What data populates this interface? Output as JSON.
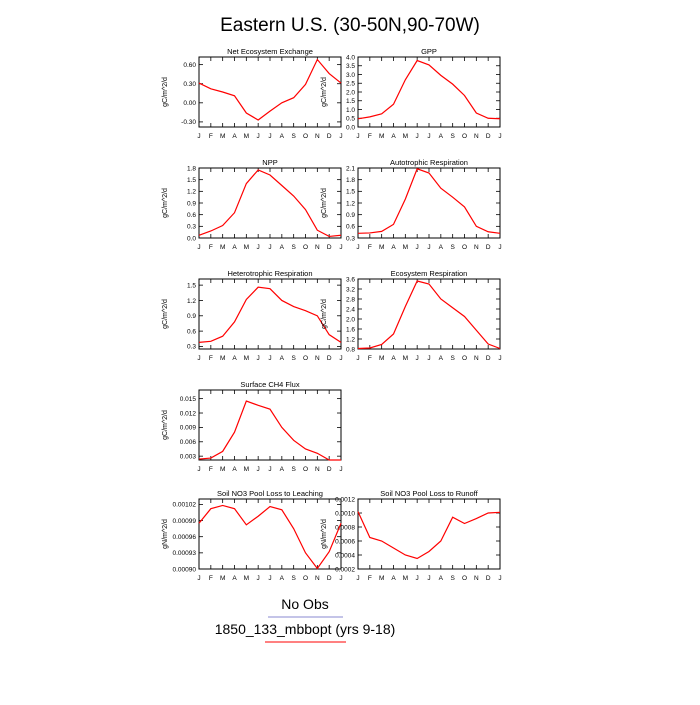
{
  "page_title": "Eastern U.S. (30-50N,90-70W)",
  "legend": {
    "entries": [
      {
        "label": "No Obs",
        "color": "#8a8ad0"
      },
      {
        "label": "1850_133_mbbopt (yrs 9-18)",
        "color": "#ff0000"
      }
    ]
  },
  "colors": {
    "series": "#ff0000",
    "axis": "#000000"
  },
  "chart_data": [
    {
      "type": "line",
      "title": "Net Ecosystem Exchange",
      "ylabel": "gC/m^2/d",
      "x": [
        "J",
        "F",
        "M",
        "A",
        "M",
        "J",
        "J",
        "A",
        "S",
        "O",
        "N",
        "D",
        "J"
      ],
      "ylim": [
        -0.38,
        0.72
      ],
      "yticks": [
        -0.3,
        0.0,
        0.3,
        0.6
      ],
      "ytick_labels": [
        "-0.30",
        "0.00",
        "0.30",
        "0.60"
      ],
      "series": [
        {
          "values": [
            0.31,
            0.22,
            0.17,
            0.11,
            -0.16,
            -0.27,
            -0.13,
            0.0,
            0.08,
            0.29,
            0.68,
            0.46,
            0.31
          ]
        }
      ]
    },
    {
      "type": "line",
      "title": "GPP",
      "ylabel": "gC/m^2/d",
      "x": [
        "J",
        "F",
        "M",
        "A",
        "M",
        "J",
        "J",
        "A",
        "S",
        "O",
        "N",
        "D",
        "J"
      ],
      "ylim": [
        0.0,
        4.0
      ],
      "yticks": [
        0.0,
        0.5,
        1.0,
        1.5,
        2.0,
        2.5,
        3.0,
        3.5,
        4.0
      ],
      "ytick_labels": [
        "0.0",
        "0.5",
        "1.0",
        "1.5",
        "2.0",
        "2.5",
        "3.0",
        "3.5",
        "4.0"
      ],
      "series": [
        {
          "values": [
            0.47,
            0.58,
            0.75,
            1.3,
            2.7,
            3.8,
            3.55,
            2.95,
            2.45,
            1.8,
            0.8,
            0.5,
            0.47
          ]
        }
      ]
    },
    {
      "type": "line",
      "title": "NPP",
      "ylabel": "gC/m^2/d",
      "x": [
        "J",
        "F",
        "M",
        "A",
        "M",
        "J",
        "J",
        "A",
        "S",
        "O",
        "N",
        "D",
        "J"
      ],
      "ylim": [
        0.0,
        1.8
      ],
      "yticks": [
        0.0,
        0.3,
        0.6,
        0.9,
        1.2,
        1.5,
        1.8
      ],
      "ytick_labels": [
        "0.0",
        "0.3",
        "0.6",
        "0.9",
        "1.2",
        "1.5",
        "1.8"
      ],
      "series": [
        {
          "values": [
            0.07,
            0.18,
            0.32,
            0.65,
            1.4,
            1.75,
            1.62,
            1.35,
            1.08,
            0.73,
            0.2,
            0.04,
            0.07
          ]
        }
      ]
    },
    {
      "type": "line",
      "title": "Autotrophic Respiration",
      "ylabel": "gC/m^2/d",
      "x": [
        "J",
        "F",
        "M",
        "A",
        "M",
        "J",
        "J",
        "A",
        "S",
        "O",
        "N",
        "D",
        "J"
      ],
      "ylim": [
        0.3,
        2.1
      ],
      "yticks": [
        0.3,
        0.6,
        0.9,
        1.2,
        1.5,
        1.8,
        2.1
      ],
      "ytick_labels": [
        "0.3",
        "0.6",
        "0.9",
        "1.2",
        "1.5",
        "1.8",
        "2.1"
      ],
      "series": [
        {
          "values": [
            0.42,
            0.43,
            0.47,
            0.65,
            1.3,
            2.08,
            1.97,
            1.58,
            1.35,
            1.1,
            0.6,
            0.46,
            0.42
          ]
        }
      ]
    },
    {
      "type": "line",
      "title": "Heterotrophic Respiration",
      "ylabel": "gC/m^2/d",
      "x": [
        "J",
        "F",
        "M",
        "A",
        "M",
        "J",
        "J",
        "A",
        "S",
        "O",
        "N",
        "D",
        "J"
      ],
      "ylim": [
        0.25,
        1.62
      ],
      "yticks": [
        0.3,
        0.6,
        0.9,
        1.2,
        1.5
      ],
      "ytick_labels": [
        "0.3",
        "0.6",
        "0.9",
        "1.2",
        "1.5"
      ],
      "series": [
        {
          "values": [
            0.38,
            0.4,
            0.5,
            0.78,
            1.22,
            1.46,
            1.43,
            1.2,
            1.08,
            1.0,
            0.9,
            0.53,
            0.38
          ]
        }
      ]
    },
    {
      "type": "line",
      "title": "Ecosystem Respiration",
      "ylabel": "gC/m^2/d",
      "x": [
        "J",
        "F",
        "M",
        "A",
        "M",
        "J",
        "J",
        "A",
        "S",
        "O",
        "N",
        "D",
        "J"
      ],
      "ylim": [
        0.8,
        3.6
      ],
      "yticks": [
        0.8,
        1.2,
        1.6,
        2.0,
        2.4,
        2.8,
        3.2,
        3.6
      ],
      "ytick_labels": [
        "0.8",
        "1.2",
        "1.6",
        "2.0",
        "2.4",
        "2.8",
        "3.2",
        "3.6"
      ],
      "series": [
        {
          "values": [
            0.82,
            0.84,
            0.98,
            1.4,
            2.5,
            3.52,
            3.4,
            2.8,
            2.45,
            2.1,
            1.55,
            1.0,
            0.82
          ]
        }
      ]
    },
    {
      "type": "line",
      "title": "Surface CH4 Flux",
      "ylabel": "gC/m^2/d",
      "x": [
        "J",
        "F",
        "M",
        "A",
        "M",
        "J",
        "J",
        "A",
        "S",
        "O",
        "N",
        "D",
        "J"
      ],
      "ylim": [
        0.0022,
        0.0168
      ],
      "yticks": [
        0.003,
        0.006,
        0.009,
        0.012,
        0.015
      ],
      "ytick_labels": [
        "0.003",
        "0.006",
        "0.009",
        "0.012",
        "0.015"
      ],
      "series": [
        {
          "values": [
            0.0024,
            0.0026,
            0.004,
            0.008,
            0.0145,
            0.0136,
            0.0128,
            0.009,
            0.0063,
            0.0045,
            0.0036,
            0.0022,
            0.0022
          ]
        }
      ]
    },
    {
      "type": "line",
      "title": "Soil NO3 Pool Loss to Leaching",
      "ylabel": "gN/m^2/d",
      "x": [
        "J",
        "F",
        "M",
        "A",
        "M",
        "J",
        "J",
        "A",
        "S",
        "O",
        "N",
        "D",
        "J"
      ],
      "ylim": [
        0.0009,
        0.00103
      ],
      "yticks": [
        0.0009,
        0.00093,
        0.00096,
        0.00099,
        0.00102
      ],
      "ytick_labels": [
        "0.00090",
        "0.00093",
        "0.00096",
        "0.00099",
        "0.00102"
      ],
      "series": [
        {
          "values": [
            0.000985,
            0.001012,
            0.001018,
            0.001012,
            0.000982,
            0.000998,
            0.001016,
            0.00101,
            0.000975,
            0.00093,
            0.000901,
            0.000932,
            0.000985
          ]
        }
      ]
    },
    {
      "type": "line",
      "title": "Soil NO3 Pool Loss to Runoff",
      "ylabel": "gN/m^2/d",
      "x": [
        "J",
        "F",
        "M",
        "A",
        "M",
        "J",
        "J",
        "A",
        "S",
        "O",
        "N",
        "D",
        "J"
      ],
      "ylim": [
        0.0002,
        0.0012
      ],
      "yticks": [
        0.0002,
        0.0004,
        0.0006,
        0.0008,
        0.001,
        0.0012
      ],
      "ytick_labels": [
        "0.0002",
        "0.0004",
        "0.0006",
        "0.0008",
        "0.0010",
        "0.0012"
      ],
      "series": [
        {
          "values": [
            0.00102,
            0.00065,
            0.0006,
            0.0005,
            0.0004,
            0.00035,
            0.00045,
            0.0006,
            0.00094,
            0.00085,
            0.00092,
            0.001,
            0.00101
          ]
        }
      ]
    }
  ]
}
